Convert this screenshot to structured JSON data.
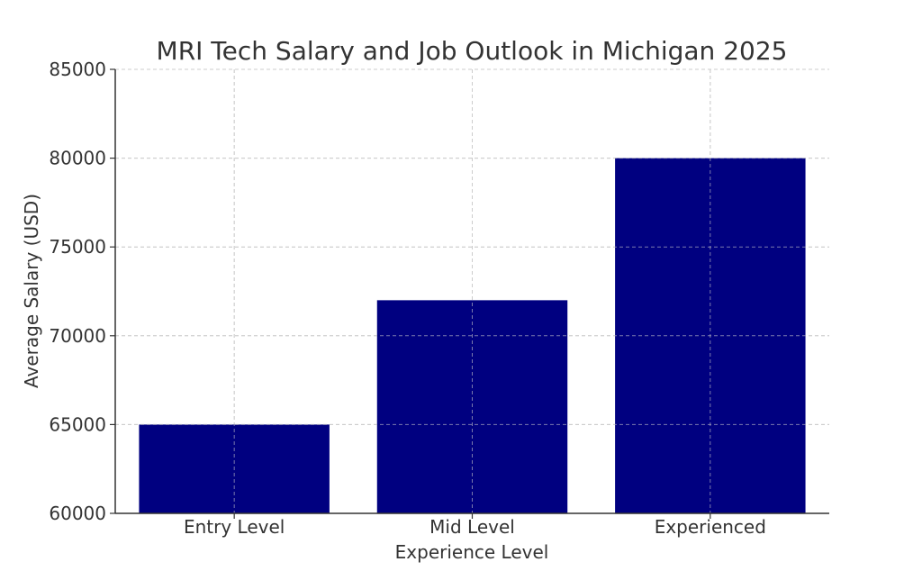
{
  "chart_data": {
    "type": "bar",
    "title": "MRI Tech Salary and Job Outlook in Michigan 2025",
    "xlabel": "Experience Level",
    "ylabel": "Average Salary (USD)",
    "categories": [
      "Entry Level",
      "Mid Level",
      "Experienced"
    ],
    "values": [
      65000,
      72000,
      80000
    ],
    "ylim": [
      60000,
      85000
    ],
    "yticks": [
      60000,
      65000,
      70000,
      75000,
      80000,
      85000
    ],
    "ytick_labels": [
      "60000",
      "65000",
      "70000",
      "75000",
      "80000",
      "85000"
    ],
    "grid": true,
    "legend": "none",
    "colors": {
      "bar": "#000080",
      "grid": "#cccccc",
      "axis": "#333333",
      "text": "#333333"
    }
  }
}
